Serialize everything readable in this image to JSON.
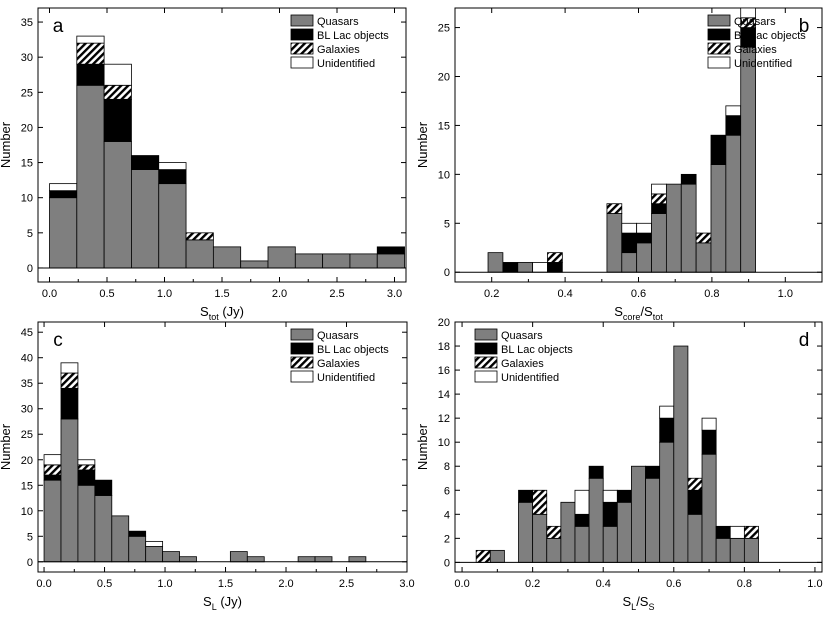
{
  "legend": {
    "entries": [
      {
        "key": "quasars",
        "label": "Quasars",
        "color": "#7f7f7f"
      },
      {
        "key": "bllac",
        "label": "BL Lac objects",
        "color": "#000000"
      },
      {
        "key": "galaxies",
        "label": "Galaxies",
        "pattern": "hatch"
      },
      {
        "key": "unidentified",
        "label": "Unidentified",
        "color": "#ffffff"
      }
    ]
  },
  "chart_data": [
    {
      "type": "bar",
      "stacked": true,
      "panel": "a",
      "xlabel": {
        "main": "S",
        "sub": "tot",
        "rest": " (Jy)"
      },
      "ylabel": "Number",
      "xlim": [
        -0.1,
        3.1
      ],
      "ylim": [
        -2,
        37
      ],
      "xticks": [
        0.0,
        0.5,
        1.0,
        1.5,
        2.0,
        2.5,
        3.0
      ],
      "xtick_labels": [
        "0.0",
        "0.5",
        "1.0",
        "1.5",
        "2.0",
        "2.5",
        "3.0"
      ],
      "yticks": [
        0,
        5,
        10,
        15,
        20,
        25,
        30,
        35
      ],
      "ytick_labels": [
        "0",
        "5",
        "10",
        "15",
        "20",
        "25",
        "30",
        "35"
      ],
      "legend_position": "top-right",
      "bin_width": 0.2375,
      "bin_left": [
        0.0,
        0.2375,
        0.475,
        0.7125,
        0.95,
        1.1875,
        1.425,
        1.6625,
        1.9,
        2.1375,
        2.375,
        2.6125,
        2.85
      ],
      "series": [
        {
          "name": "Quasars",
          "values": [
            10,
            26,
            18,
            14,
            12,
            4,
            3,
            1,
            3,
            2,
            2,
            2,
            2
          ]
        },
        {
          "name": "BL Lac objects",
          "values": [
            1,
            3,
            6,
            2,
            2,
            0,
            0,
            0,
            0,
            0,
            0,
            0,
            1
          ]
        },
        {
          "name": "Galaxies",
          "values": [
            0,
            3,
            2,
            0,
            0,
            1,
            0,
            0,
            0,
            0,
            0,
            0,
            0
          ]
        },
        {
          "name": "Unidentified",
          "values": [
            1,
            1,
            3,
            0,
            1,
            0,
            0,
            0,
            0,
            0,
            0,
            0,
            0
          ]
        }
      ]
    },
    {
      "type": "bar",
      "stacked": true,
      "panel": "b",
      "xlabel": {
        "main": "S",
        "sub": "core",
        "rest": "/S",
        "sub2": "tot"
      },
      "ylabel": "Number",
      "xlim": [
        0.1,
        1.1
      ],
      "ylim": [
        -1,
        27
      ],
      "xticks": [
        0.2,
        0.4,
        0.6,
        0.8,
        1.0
      ],
      "xtick_labels": [
        "0.2",
        "0.4",
        "0.6",
        "0.8",
        "1.0"
      ],
      "yticks": [
        0,
        5,
        10,
        15,
        20,
        25
      ],
      "ytick_labels": [
        "0",
        "5",
        "10",
        "15",
        "20",
        "25"
      ],
      "legend_position": "top-right",
      "bin_width": 0.0405,
      "bin_left": [
        0.19,
        0.2305,
        0.271,
        0.3115,
        0.352,
        0.3925,
        0.433,
        0.4735,
        0.514,
        0.5545,
        0.595,
        0.6355,
        0.676,
        0.7165,
        0.757,
        0.7975,
        0.838,
        0.8785,
        0.919,
        0.9595
      ],
      "series": [
        {
          "name": "Quasars",
          "values": [
            2,
            0,
            1,
            0,
            0,
            0,
            0,
            0,
            6,
            2,
            3,
            6,
            9,
            9,
            3,
            11,
            14,
            23,
            0,
            0
          ]
        },
        {
          "name": "BL Lac objects",
          "values": [
            0,
            1,
            0,
            0,
            1,
            0,
            0,
            0,
            0,
            2,
            1,
            1,
            0,
            1,
            0,
            3,
            2,
            2,
            0,
            0
          ]
        },
        {
          "name": "Galaxies",
          "values": [
            0,
            0,
            0,
            0,
            1,
            0,
            0,
            0,
            1,
            0,
            0,
            1,
            0,
            0,
            1,
            0,
            0,
            1,
            0,
            0
          ]
        },
        {
          "name": "Unidentified",
          "values": [
            0,
            0,
            0,
            1,
            0,
            0,
            0,
            0,
            0,
            1,
            1,
            1,
            0,
            0,
            0,
            0,
            1,
            1,
            0,
            0
          ]
        }
      ]
    },
    {
      "type": "bar",
      "stacked": true,
      "panel": "c",
      "xlabel": {
        "main": "S",
        "sub": "L",
        "rest": " (Jy)"
      },
      "ylabel": "Number",
      "xlim": [
        -0.05,
        3.0
      ],
      "ylim": [
        -2,
        47
      ],
      "xticks": [
        0.0,
        0.5,
        1.0,
        1.5,
        2.0,
        2.5,
        3.0
      ],
      "xtick_labels": [
        "0.0",
        "0.5",
        "1.0",
        "1.5",
        "2.0",
        "2.5",
        "3.0"
      ],
      "yticks": [
        0,
        5,
        10,
        15,
        20,
        25,
        30,
        35,
        40,
        45
      ],
      "ytick_labels": [
        "0",
        "5",
        "10",
        "15",
        "20",
        "25",
        "30",
        "35",
        "40",
        "45"
      ],
      "legend_position": "top-right",
      "bin_width": 0.14,
      "bin_left": [
        0.0,
        0.14,
        0.28,
        0.42,
        0.56,
        0.7,
        0.84,
        0.98,
        1.12,
        1.26,
        1.4,
        1.54,
        1.68,
        1.82,
        1.96,
        2.1,
        2.24,
        2.38,
        2.52,
        2.66
      ],
      "series": [
        {
          "name": "Quasars",
          "values": [
            16,
            28,
            15,
            13,
            9,
            5,
            3,
            2,
            1,
            0,
            0,
            2,
            1,
            0,
            0,
            1,
            1,
            0,
            1,
            0
          ]
        },
        {
          "name": "BL Lac objects",
          "values": [
            1,
            6,
            3,
            3,
            0,
            1,
            0,
            0,
            0,
            0,
            0,
            0,
            0,
            0,
            0,
            0,
            0,
            0,
            0,
            0
          ]
        },
        {
          "name": "Galaxies",
          "values": [
            2,
            3,
            1,
            0,
            0,
            0,
            0,
            0,
            0,
            0,
            0,
            0,
            0,
            0,
            0,
            0,
            0,
            0,
            0,
            0
          ]
        },
        {
          "name": "Unidentified",
          "values": [
            2,
            2,
            1,
            0,
            0,
            0,
            1,
            0,
            0,
            0,
            0,
            0,
            0,
            0,
            0,
            0,
            0,
            0,
            0,
            0
          ]
        }
      ]
    },
    {
      "type": "bar",
      "stacked": true,
      "panel": "d",
      "xlabel": {
        "main": "S",
        "sub": "L",
        "rest": "/S",
        "sub2": "S"
      },
      "ylabel": "Number",
      "xlim": [
        -0.02,
        1.02
      ],
      "ylim": [
        -0.8,
        20
      ],
      "xticks": [
        0.0,
        0.2,
        0.4,
        0.6,
        0.8,
        1.0
      ],
      "xtick_labels": [
        "0.0",
        "0.2",
        "0.4",
        "0.6",
        "0.8",
        "1.0"
      ],
      "yticks": [
        0,
        2,
        4,
        6,
        8,
        10,
        12,
        14,
        16,
        18,
        20
      ],
      "ytick_labels": [
        "0",
        "2",
        "4",
        "6",
        "8",
        "10",
        "12",
        "14",
        "16",
        "18",
        "20"
      ],
      "legend_position": "top-left",
      "bin_width": 0.04,
      "bin_left": [
        0.04,
        0.08,
        0.12,
        0.16,
        0.2,
        0.24,
        0.28,
        0.32,
        0.36,
        0.4,
        0.44,
        0.48,
        0.52,
        0.56,
        0.6,
        0.64,
        0.68,
        0.72,
        0.76,
        0.8,
        0.84,
        0.88,
        0.92,
        0.96
      ],
      "series": [
        {
          "name": "Quasars",
          "values": [
            0,
            1,
            0,
            5,
            4,
            2,
            5,
            3,
            7,
            3,
            5,
            8,
            7,
            10,
            18,
            4,
            9,
            2,
            2,
            2,
            0,
            0,
            0,
            0
          ]
        },
        {
          "name": "BL Lac objects",
          "values": [
            0,
            0,
            0,
            1,
            0,
            0,
            0,
            1,
            1,
            2,
            1,
            0,
            1,
            2,
            0,
            2,
            2,
            1,
            0,
            0,
            0,
            0,
            0,
            0
          ]
        },
        {
          "name": "Galaxies",
          "values": [
            1,
            0,
            0,
            0,
            2,
            1,
            0,
            0,
            0,
            0,
            0,
            0,
            0,
            0,
            0,
            1,
            0,
            0,
            0,
            1,
            0,
            0,
            0,
            0
          ]
        },
        {
          "name": "Unidentified",
          "values": [
            0,
            0,
            0,
            0,
            0,
            0,
            0,
            2,
            0,
            1,
            0,
            0,
            0,
            1,
            0,
            0,
            1,
            0,
            1,
            0,
            0,
            0,
            0,
            0
          ]
        }
      ]
    }
  ]
}
